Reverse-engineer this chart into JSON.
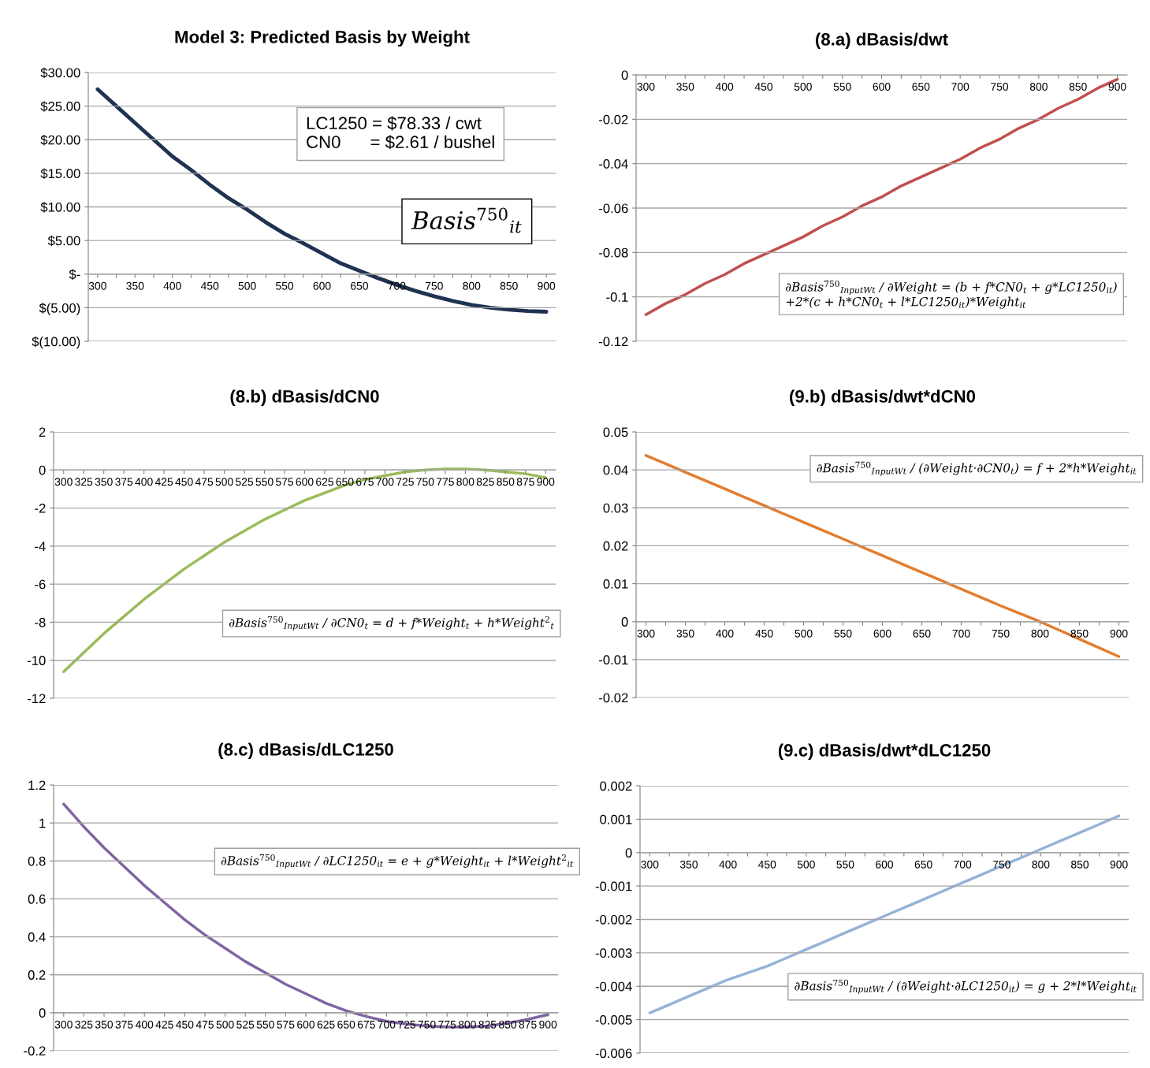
{
  "chart_data": [
    {
      "type": "line",
      "title": "Model 3: Predicted Basis by Weight",
      "categories": [
        "300",
        null,
        "350",
        null,
        "400",
        null,
        "450",
        null,
        "500",
        null,
        "550",
        null,
        "600",
        null,
        "650",
        null,
        "700",
        null,
        "750",
        null,
        "800",
        null,
        "850",
        null,
        "900"
      ],
      "series": [
        {
          "color": "#1f3251",
          "values": [
            27.5,
            25.0,
            22.5,
            20.0,
            17.5,
            15.5,
            13.3,
            11.3,
            9.6,
            7.7,
            6.0,
            4.6,
            3.1,
            1.6,
            0.5,
            -0.6,
            -1.6,
            -2.5,
            -3.3,
            -4.0,
            -4.6,
            -5.0,
            -5.3,
            -5.5,
            -5.6
          ]
        }
      ],
      "ylim": [
        -10,
        30
      ],
      "yticks": [
        {
          "value": -10,
          "label": "$(10.00)"
        },
        {
          "value": -5,
          "label": "$(5.00)"
        },
        {
          "value": 0,
          "label": "$-"
        },
        {
          "value": 5,
          "label": "$5.00"
        },
        {
          "value": 10,
          "label": "$10.00"
        },
        {
          "value": 15,
          "label": "$15.00"
        },
        {
          "value": 20,
          "label": "$20.00"
        },
        {
          "value": 25,
          "label": "$25.00"
        },
        {
          "value": 30,
          "label": "$30.00"
        }
      ],
      "grid": "y",
      "annotations": [
        "LC1250 = $78.33 / cwt\nCN0      = $2.61 / bushel",
        "Basis$^{750}$$_{it}$"
      ]
    },
    {
      "type": "line",
      "title": "(8.a) dBasis/dwt",
      "categories": [
        "300",
        null,
        "350",
        null,
        "400",
        null,
        "450",
        null,
        "500",
        null,
        "550",
        null,
        "600",
        null,
        "650",
        null,
        "700",
        null,
        "750",
        null,
        "800",
        null,
        "850",
        null,
        "900"
      ],
      "series": [
        {
          "color": "#c0504d",
          "values": [
            -0.108,
            -0.103,
            -0.099,
            -0.094,
            -0.09,
            -0.085,
            -0.081,
            -0.077,
            -0.073,
            -0.068,
            -0.064,
            -0.059,
            -0.055,
            -0.05,
            -0.046,
            -0.042,
            -0.038,
            -0.033,
            -0.029,
            -0.024,
            -0.02,
            -0.015,
            -0.011,
            -0.006,
            -0.002
          ]
        }
      ],
      "ylim": [
        -0.12,
        0
      ],
      "yticks": [
        -0.12,
        -0.1,
        -0.08,
        -0.06,
        -0.04,
        -0.02,
        0
      ],
      "grid": "y",
      "annotations": [
        "∂Basis$^{750}$$_{InputWt}$ / ∂Weight = (b + f*CN0$_{t}$ + g*LC1250$_{it}$)\n+2*(c + h*CN0$_{t}$ + l*LC1250$_{it}$)*Weight$_{it}$"
      ]
    },
    {
      "type": "line",
      "title": "(8.b) dBasis/dCN0",
      "categories": [
        "300",
        "325",
        "350",
        "375",
        "400",
        "425",
        "450",
        "475",
        "500",
        "525",
        "550",
        "575",
        "600",
        "625",
        "650",
        "675",
        "700",
        "725",
        "750",
        "775",
        "800",
        "825",
        "850",
        "875",
        "900"
      ],
      "series": [
        {
          "color": "#9bbb59",
          "values": [
            -10.6,
            -9.6,
            -8.6,
            -7.7,
            -6.8,
            -6.0,
            -5.2,
            -4.5,
            -3.8,
            -3.2,
            -2.6,
            -2.1,
            -1.6,
            -1.2,
            -0.8,
            -0.5,
            -0.3,
            -0.1,
            0.0,
            0.05,
            0.05,
            0.0,
            -0.1,
            -0.2,
            -0.4
          ]
        }
      ],
      "ylim": [
        -12,
        2
      ],
      "yticks": [
        -12,
        -10,
        -8,
        -6,
        -4,
        -2,
        0,
        2
      ],
      "grid": "y",
      "annotations": [
        "∂Basis$^{750}$$_{InputWt}$ / ∂CN0$_{t}$ = d + f*Weight$_{t}$ + h*Weight$^{2}$$_{t}$"
      ]
    },
    {
      "type": "line",
      "title": "(9.b) dBasis/dwt*dCN0",
      "categories": [
        "300",
        null,
        "350",
        null,
        "400",
        null,
        "450",
        null,
        "500",
        null,
        "550",
        null,
        "600",
        null,
        "650",
        null,
        "700",
        null,
        "750",
        null,
        "800",
        null,
        "850",
        null,
        "900"
      ],
      "series": [
        {
          "color": "#e37d2f",
          "values": [
            0.0438,
            0.0416,
            0.0394,
            0.0372,
            0.035,
            0.0328,
            0.0306,
            0.0284,
            0.0262,
            0.024,
            0.0218,
            0.0196,
            0.0174,
            0.0152,
            0.013,
            0.0108,
            0.0086,
            0.0064,
            0.0042,
            0.0021,
            0.0,
            -0.0023,
            -0.0046,
            -0.0069,
            -0.0092
          ]
        }
      ],
      "ylim": [
        -0.02,
        0.05
      ],
      "yticks": [
        -0.02,
        -0.01,
        0,
        0.01,
        0.02,
        0.03,
        0.04,
        0.05
      ],
      "grid": "y",
      "annotations": [
        "∂Basis$^{750}$$_{InputWt}$ / (∂Weight·∂CN0$_{t}$) = f + 2*h*Weight$_{it}$"
      ]
    },
    {
      "type": "line",
      "title": "(8.c) dBasis/dLC1250",
      "categories": [
        "300",
        "325",
        "350",
        "375",
        "400",
        "425",
        "450",
        "475",
        "500",
        "525",
        "550",
        "575",
        "600",
        "625",
        "650",
        "675",
        "700",
        "725",
        "750",
        "775",
        "800",
        "825",
        "850",
        "875",
        "900"
      ],
      "series": [
        {
          "color": "#8064a2",
          "values": [
            1.1,
            0.98,
            0.87,
            0.77,
            0.67,
            0.58,
            0.49,
            0.41,
            0.34,
            0.27,
            0.21,
            0.15,
            0.1,
            0.05,
            0.01,
            -0.02,
            -0.045,
            -0.06,
            -0.07,
            -0.075,
            -0.075,
            -0.07,
            -0.055,
            -0.035,
            -0.01
          ]
        }
      ],
      "ylim": [
        -0.2,
        1.2
      ],
      "yticks": [
        -0.2,
        0,
        0.2,
        0.4,
        0.6,
        0.8,
        1,
        1.2
      ],
      "grid": "y",
      "annotations": [
        "∂Basis$^{750}$$_{InputWt}$ / ∂LC1250$_{it}$ = e + g*Weight$_{it}$ + l*Weight$^{2}$$_{it}$"
      ]
    },
    {
      "type": "line",
      "title": "(9.c) dBasis/dwt*dLC1250",
      "categories": [
        "300",
        null,
        "350",
        null,
        "400",
        null,
        "450",
        null,
        "500",
        null,
        "550",
        null,
        "600",
        null,
        "650",
        null,
        "700",
        null,
        "750",
        null,
        "800",
        null,
        "850",
        null,
        "900"
      ],
      "series": [
        {
          "color": "#95b3d7",
          "values": [
            -0.0048,
            -0.00455,
            -0.0043,
            -0.00405,
            -0.0038,
            -0.0036,
            -0.0034,
            -0.00315,
            -0.0029,
            -0.00265,
            -0.0024,
            -0.00215,
            -0.0019,
            -0.00165,
            -0.0014,
            -0.00115,
            -0.0009,
            -0.00065,
            -0.0004,
            -0.00015,
            0.0001,
            0.00035,
            0.0006,
            0.00085,
            0.0011
          ]
        }
      ],
      "ylim": [
        -0.006,
        0.002
      ],
      "yticks": [
        -0.006,
        -0.005,
        -0.004,
        -0.003,
        -0.002,
        -0.001,
        0,
        0.001,
        0.002
      ],
      "grid": "y",
      "annotations": [
        "∂Basis$^{750}$$_{InputWt}$ / (∂Weight·∂LC1250$_{it}$) = g + 2*l*Weight$_{it}$"
      ]
    }
  ]
}
